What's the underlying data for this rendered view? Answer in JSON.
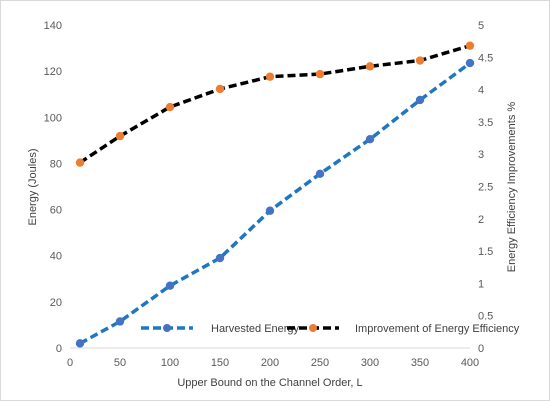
{
  "chart_data": {
    "type": "line",
    "title": "",
    "xlabel": "Upper Bound on the Channel Order, L",
    "ylabel": "Energy (Joules)",
    "y2label": "Energy Efficiency Improvements %",
    "x_ticks": [
      0,
      50,
      100,
      150,
      200,
      250,
      300,
      350,
      400
    ],
    "y_ticks": [
      0,
      20,
      40,
      60,
      80,
      100,
      120,
      140
    ],
    "y2_ticks": [
      "0",
      "0.5",
      "1",
      "1.5",
      "2",
      "2.5",
      "3",
      "3.5",
      "4",
      "4.5",
      "5"
    ],
    "xlim": [
      0,
      400
    ],
    "ylim": [
      0,
      140
    ],
    "y2lim": [
      0,
      5
    ],
    "grid": "off",
    "legend_position": "bottom-right",
    "x": [
      10,
      50,
      100,
      150,
      200,
      250,
      300,
      350,
      400
    ],
    "series": [
      {
        "name": "Harvested Energy",
        "axis": "left",
        "values": [
          2,
          11.5,
          27,
          39,
          59.5,
          75.5,
          90.5,
          107.5,
          123.5
        ],
        "line_color": "#1f77c4",
        "marker_color": "#4472c4"
      },
      {
        "name": "Improvement of Energy Efficiency",
        "axis": "right",
        "values": [
          2.87,
          3.28,
          3.73,
          4.01,
          4.2,
          4.24,
          4.36,
          4.45,
          4.68
        ],
        "line_color": "#000000",
        "marker_color": "#ed7d31"
      }
    ]
  }
}
